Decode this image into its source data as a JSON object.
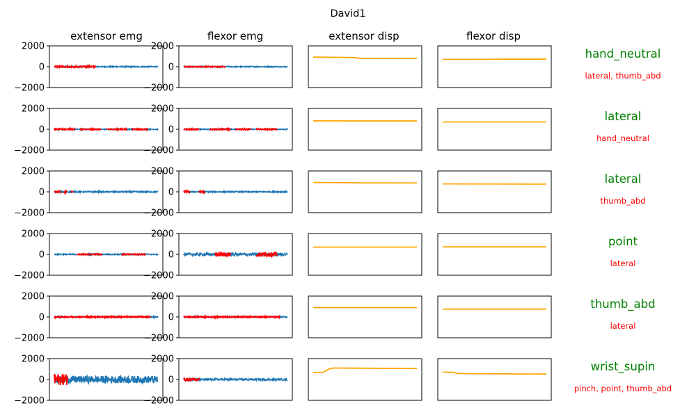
{
  "chart_data": {
    "type": "line",
    "title": "David1",
    "column_titles": [
      "extensor emg",
      "flexor emg",
      "extensor disp",
      "flexor disp"
    ],
    "emg_yticks": [
      "2000",
      "0",
      "−2000"
    ],
    "emg_ylim": [
      -2000,
      2000
    ],
    "disp_ylim": [
      -2000,
      2000
    ],
    "colors": {
      "emg": "#1f77b4",
      "highlight": "#ff0000",
      "disp": "#ffa500",
      "label": "#008000",
      "sublabel": "#ff0000"
    },
    "x_range": [
      0,
      100
    ],
    "grid": false,
    "rows": [
      {
        "label": "hand_neutral",
        "sublabel": "lateral, thumb_abd",
        "extensor_emg": {
          "amplitude": 55,
          "highlight": [
            [
              0,
              40
            ]
          ],
          "highlight_amplitude": 70
        },
        "flexor_emg": {
          "amplitude": 45,
          "highlight": [
            [
              0,
              40
            ]
          ],
          "highlight_amplitude": 45
        },
        "extensor_disp": {
          "x": [
            0,
            40,
            45,
            100
          ],
          "y": [
            920,
            880,
            800,
            800
          ]
        },
        "flexor_disp": {
          "x": [
            0,
            30,
            60,
            100
          ],
          "y": [
            700,
            700,
            720,
            730
          ]
        }
      },
      {
        "label": "lateral",
        "sublabel": "hand_neutral",
        "extensor_emg": {
          "amplitude": 45,
          "highlight": [
            [
              0,
              20
            ],
            [
              25,
              45
            ],
            [
              50,
              70
            ],
            [
              75,
              90
            ]
          ],
          "highlight_amplitude": 55
        },
        "flexor_emg": {
          "amplitude": 45,
          "highlight": [
            [
              0,
              15
            ],
            [
              25,
              45
            ],
            [
              50,
              65
            ],
            [
              70,
              90
            ]
          ],
          "highlight_amplitude": 55
        },
        "extensor_disp": {
          "x": [
            0,
            50,
            100
          ],
          "y": [
            810,
            800,
            800
          ]
        },
        "flexor_disp": {
          "x": [
            0,
            50,
            100
          ],
          "y": [
            700,
            700,
            700
          ]
        }
      },
      {
        "label": "lateral",
        "sublabel": "thumb_abd",
        "extensor_emg": {
          "amplitude": 60,
          "highlight": [
            [
              0,
              6
            ],
            [
              9,
              12
            ],
            [
              16,
              18
            ]
          ],
          "highlight_amplitude": 120
        },
        "flexor_emg": {
          "amplitude": 55,
          "highlight": [
            [
              0,
              6
            ],
            [
              15,
              20
            ]
          ],
          "highlight_amplitude": 130
        },
        "extensor_disp": {
          "x": [
            0,
            50,
            100
          ],
          "y": [
            900,
            860,
            850
          ]
        },
        "flexor_disp": {
          "x": [
            0,
            50,
            100
          ],
          "y": [
            760,
            750,
            740
          ]
        }
      },
      {
        "label": "point",
        "sublabel": "lateral",
        "extensor_emg": {
          "amplitude": 50,
          "highlight": [
            [
              22,
              46
            ],
            [
              65,
              88
            ]
          ],
          "highlight_amplitude": 50
        },
        "flexor_emg": {
          "amplitude": 120,
          "highlight": [
            [
              30,
              45
            ],
            [
              70,
              90
            ]
          ],
          "highlight_amplitude": 220
        },
        "extensor_disp": {
          "x": [
            0,
            50,
            100
          ],
          "y": [
            700,
            700,
            700
          ]
        },
        "flexor_disp": {
          "x": [
            0,
            50,
            100
          ],
          "y": [
            720,
            720,
            720
          ]
        }
      },
      {
        "label": "thumb_abd",
        "sublabel": "lateral",
        "extensor_emg": {
          "amplitude": 50,
          "highlight": [
            [
              0,
              93
            ]
          ],
          "highlight_amplitude": 60
        },
        "flexor_emg": {
          "amplitude": 50,
          "highlight": [
            [
              0,
              93
            ]
          ],
          "highlight_amplitude": 60
        },
        "extensor_disp": {
          "x": [
            0,
            50,
            100
          ],
          "y": [
            900,
            900,
            900
          ]
        },
        "flexor_disp": {
          "x": [
            0,
            50,
            100
          ],
          "y": [
            750,
            750,
            750
          ]
        }
      },
      {
        "label": "wrist_supin",
        "sublabel": "pinch, point, thumb_abd",
        "extensor_emg": {
          "amplitude": 350,
          "highlight": [
            [
              0,
              13
            ]
          ],
          "highlight_amplitude": 550
        },
        "flexor_emg": {
          "amplitude": 90,
          "highlight": [
            [
              0,
              15
            ]
          ],
          "highlight_amplitude": 120
        },
        "extensor_disp": {
          "x": [
            0,
            10,
            16,
            20,
            100
          ],
          "y": [
            650,
            700,
            1050,
            1100,
            1050
          ]
        },
        "flexor_disp": {
          "x": [
            0,
            10,
            14,
            30,
            100
          ],
          "y": [
            700,
            700,
            580,
            550,
            520
          ]
        }
      }
    ]
  }
}
